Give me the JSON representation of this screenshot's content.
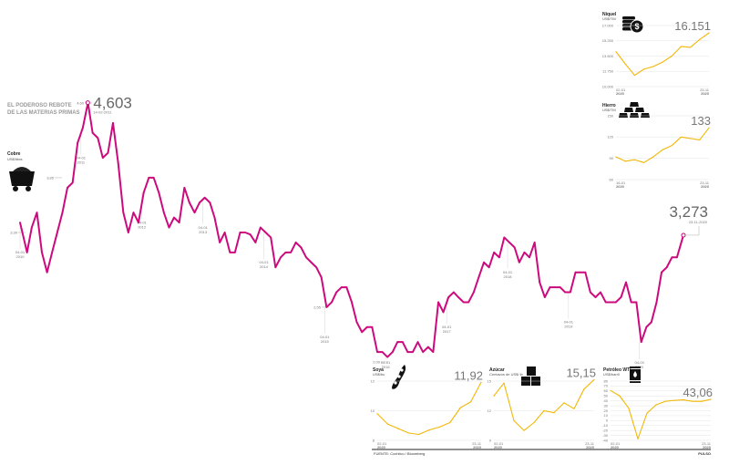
{
  "title_line1": "EL PODEROSO REBOTE",
  "title_line2": "DE LAS MATERIAS PRIMAS",
  "footer_source": "FUENTE: Cochilco / Bloomberg",
  "footer_brand": "PULSO",
  "colors": {
    "copper": "#cc0a7d",
    "others": "#f2b705",
    "grid": "#dddddd",
    "text": "#333333"
  },
  "chart_data": [
    {
      "type": "line",
      "title": "Cobre",
      "ylabel": "US$/libra",
      "icon": "mine-cart-icon",
      "yticks": [
        4.6,
        3.85,
        3.3,
        2.55,
        2.0
      ],
      "ytick_labels": [
        "4,60",
        "3,85",
        "3,30",
        "2,55",
        "2,00"
      ],
      "ylim": [
        2.0,
        4.6
      ],
      "xlim": [
        "2010-01-04",
        "2020-11-23"
      ],
      "xtick_labels": [
        {
          "date": "2010-01-04",
          "label": "04-01",
          "year": "2010"
        },
        {
          "date": "2011-01-04",
          "label": "04-01",
          "year": "2011"
        },
        {
          "date": "2012-01-04",
          "label": "04-01",
          "year": "2012"
        },
        {
          "date": "2013-01-04",
          "label": "04-01",
          "year": "2013"
        },
        {
          "date": "2014-01-04",
          "label": "04-01",
          "year": "2014"
        },
        {
          "date": "2015-01-04",
          "label": "04-01",
          "year": "2015"
        },
        {
          "date": "2016-01-04",
          "label": "04-01",
          "year": "2016"
        },
        {
          "date": "2017-01-04",
          "label": "04-01",
          "year": "2017"
        },
        {
          "date": "2018-01-04",
          "label": "04-01",
          "year": "2018"
        },
        {
          "date": "2019-01-04",
          "label": "04-01",
          "year": "2019"
        },
        {
          "date": "2020-03-04",
          "label": "04-03",
          "year": "2020"
        }
      ],
      "annotations": [
        {
          "date": "2011-02-14",
          "value": 4.603,
          "label": "4,603",
          "sublabel": "14-02-2011"
        },
        {
          "date": "2020-11-23",
          "value": 3.273,
          "label": "3,273",
          "sublabel": "23-11-2020"
        }
      ],
      "x": [
        "2010-01",
        "2010-02",
        "2010-03",
        "2010-04",
        "2010-05",
        "2010-06",
        "2010-07",
        "2010-08",
        "2010-09",
        "2010-10",
        "2010-11",
        "2010-12",
        "2011-01",
        "2011-02",
        "2011-03",
        "2011-04",
        "2011-05",
        "2011-06",
        "2011-07",
        "2011-08",
        "2011-09",
        "2011-10",
        "2011-11",
        "2011-12",
        "2012-01",
        "2012-02",
        "2012-03",
        "2012-04",
        "2012-05",
        "2012-06",
        "2012-07",
        "2012-08",
        "2012-09",
        "2012-10",
        "2012-11",
        "2012-12",
        "2013-01",
        "2013-02",
        "2013-03",
        "2013-04",
        "2013-05",
        "2013-06",
        "2013-07",
        "2013-08",
        "2013-09",
        "2013-10",
        "2013-11",
        "2013-12",
        "2014-01",
        "2014-02",
        "2014-03",
        "2014-04",
        "2014-05",
        "2014-06",
        "2014-07",
        "2014-08",
        "2014-09",
        "2014-10",
        "2014-11",
        "2014-12",
        "2015-01",
        "2015-02",
        "2015-03",
        "2015-04",
        "2015-05",
        "2015-06",
        "2015-07",
        "2015-08",
        "2015-09",
        "2015-10",
        "2015-11",
        "2015-12",
        "2016-01",
        "2016-02",
        "2016-03",
        "2016-04",
        "2016-05",
        "2016-06",
        "2016-07",
        "2016-08",
        "2016-09",
        "2016-10",
        "2016-11",
        "2016-12",
        "2017-01",
        "2017-02",
        "2017-03",
        "2017-04",
        "2017-05",
        "2017-06",
        "2017-07",
        "2017-08",
        "2017-09",
        "2017-10",
        "2017-11",
        "2017-12",
        "2018-01",
        "2018-02",
        "2018-03",
        "2018-04",
        "2018-05",
        "2018-06",
        "2018-07",
        "2018-08",
        "2018-09",
        "2018-10",
        "2018-11",
        "2018-12",
        "2019-01",
        "2019-02",
        "2019-03",
        "2019-04",
        "2019-05",
        "2019-06",
        "2019-07",
        "2019-08",
        "2019-09",
        "2019-10",
        "2019-11",
        "2019-12",
        "2020-01",
        "2020-02",
        "2020-03",
        "2020-04",
        "2020-05",
        "2020-06",
        "2020-07",
        "2020-08",
        "2020-09",
        "2020-10",
        "2020-11"
      ],
      "values": [
        3.4,
        3.1,
        3.35,
        3.5,
        3.1,
        2.9,
        3.1,
        3.3,
        3.5,
        3.75,
        3.8,
        4.2,
        4.35,
        4.603,
        4.3,
        4.25,
        4.05,
        4.1,
        4.4,
        4.0,
        3.5,
        3.3,
        3.5,
        3.4,
        3.7,
        3.85,
        3.85,
        3.7,
        3.5,
        3.35,
        3.45,
        3.4,
        3.75,
        3.6,
        3.5,
        3.6,
        3.65,
        3.6,
        3.45,
        3.2,
        3.3,
        3.1,
        3.1,
        3.3,
        3.3,
        3.28,
        3.2,
        3.35,
        3.3,
        3.25,
        2.95,
        3.05,
        3.1,
        3.1,
        3.2,
        3.15,
        3.05,
        3.0,
        2.95,
        2.85,
        2.55,
        2.6,
        2.7,
        2.75,
        2.75,
        2.6,
        2.4,
        2.3,
        2.35,
        2.35,
        2.1,
        2.1,
        2.05,
        2.1,
        2.2,
        2.2,
        2.1,
        2.1,
        2.2,
        2.1,
        2.15,
        2.1,
        2.6,
        2.5,
        2.65,
        2.7,
        2.65,
        2.6,
        2.6,
        2.7,
        2.85,
        3.0,
        2.95,
        3.1,
        3.05,
        3.25,
        3.2,
        3.15,
        3.0,
        3.1,
        3.05,
        3.2,
        2.8,
        2.65,
        2.75,
        2.75,
        2.75,
        2.7,
        2.7,
        2.9,
        2.9,
        2.9,
        2.7,
        2.65,
        2.7,
        2.6,
        2.6,
        2.6,
        2.65,
        2.8,
        2.6,
        2.6,
        2.2,
        2.35,
        2.4,
        2.6,
        2.9,
        2.95,
        3.05,
        3.05,
        3.273
      ]
    },
    {
      "type": "line",
      "title": "Níquel",
      "ylabel": "US$/TM",
      "icon": "coins-dollar-icon",
      "yticks": [
        17000,
        15250,
        13500,
        11750,
        10000
      ],
      "ytick_labels": [
        "17.000",
        "15.250",
        "13.500",
        "11.750",
        "10.000"
      ],
      "ylim": [
        10000,
        17000
      ],
      "xtick_labels": [
        {
          "label": "02-01",
          "year": "2020"
        },
        {
          "label": "23-11",
          "year": "2020"
        }
      ],
      "last_label": "16.151",
      "x": [
        "2020-01",
        "2020-02",
        "2020-03",
        "2020-04",
        "2020-05",
        "2020-06",
        "2020-07",
        "2020-08",
        "2020-09",
        "2020-10",
        "2020-11"
      ],
      "values": [
        14000,
        12600,
        11300,
        12000,
        12300,
        12800,
        13500,
        14600,
        14500,
        15400,
        16151
      ]
    },
    {
      "type": "line",
      "title": "Hierro",
      "ylabel": "US$/TM",
      "icon": "ingots-icon",
      "yticks": [
        150,
        120,
        90,
        60
      ],
      "ytick_labels": [
        "150",
        "120",
        "90",
        "60"
      ],
      "ylim": [
        60,
        150
      ],
      "xtick_labels": [
        {
          "label": "16-01",
          "year": "2020"
        },
        {
          "label": "23-11",
          "year": "2020"
        }
      ],
      "last_label": "133",
      "x": [
        "2020-01",
        "2020-02",
        "2020-03",
        "2020-04",
        "2020-05",
        "2020-06",
        "2020-07",
        "2020-08",
        "2020-09",
        "2020-10",
        "2020-11"
      ],
      "values": [
        92,
        86,
        88,
        84,
        92,
        102,
        108,
        120,
        118,
        116,
        133
      ]
    },
    {
      "type": "line",
      "title": "Soya",
      "ylabel": "US$/bu",
      "icon": "soybean-pod-icon",
      "yticks": [
        12,
        10,
        8
      ],
      "ytick_labels": [
        "12",
        "10",
        "8"
      ],
      "ylim": [
        8,
        12
      ],
      "xtick_labels": [
        {
          "label": "02-01",
          "year": "2020"
        },
        {
          "label": "23-11",
          "year": "2020"
        }
      ],
      "last_label": "11,92",
      "x": [
        "2020-01",
        "2020-02",
        "2020-03",
        "2020-04",
        "2020-05",
        "2020-06",
        "2020-07",
        "2020-08",
        "2020-09",
        "2020-10",
        "2020-11"
      ],
      "values": [
        9.8,
        9.1,
        8.8,
        8.5,
        8.4,
        8.7,
        8.9,
        9.2,
        10.2,
        10.6,
        11.92
      ]
    },
    {
      "type": "line",
      "title": "Azúcar",
      "ylabel": "Centavos de US$/ lb",
      "icon": "sugar-cubes-icon",
      "yticks": [
        15,
        12,
        9
      ],
      "ytick_labels": [
        "15",
        "12",
        "9"
      ],
      "ylim": [
        9,
        15
      ],
      "xtick_labels": [
        {
          "label": "02-01",
          "year": "2020"
        },
        {
          "label": "23-11",
          "year": "2020"
        }
      ],
      "last_label": "15,15",
      "x": [
        "2020-01",
        "2020-02",
        "2020-03",
        "2020-04",
        "2020-05",
        "2020-06",
        "2020-07",
        "2020-08",
        "2020-09",
        "2020-10",
        "2020-11"
      ],
      "values": [
        13.5,
        14.8,
        11.0,
        10.0,
        10.8,
        12.0,
        11.8,
        12.8,
        12.2,
        14.2,
        15.15
      ]
    },
    {
      "type": "line",
      "title": "Petróleo WTI",
      "ylabel": "US$/barril",
      "icon": "oil-barrel-icon",
      "yticks": [
        80,
        70,
        60,
        50,
        40,
        30,
        20,
        10,
        0,
        -10,
        -20,
        -30,
        -40
      ],
      "ytick_labels": [
        "80",
        "70",
        "60",
        "50",
        "40",
        "30",
        "20",
        "10",
        "0",
        "-10",
        "-20",
        "-30",
        "-40"
      ],
      "ylim": [
        -40,
        80
      ],
      "xtick_labels": [
        {
          "label": "02-01",
          "year": "2020"
        },
        {
          "label": "23-11",
          "year": "2020"
        }
      ],
      "last_label": "43,06",
      "x": [
        "2020-01",
        "2020-02",
        "2020-03",
        "2020-04a",
        "2020-04b",
        "2020-05",
        "2020-06",
        "2020-07",
        "2020-08",
        "2020-09",
        "2020-10",
        "2020-11"
      ],
      "values": [
        61,
        50,
        25,
        -37,
        15,
        32,
        39,
        41,
        42,
        39,
        39,
        43.06
      ]
    }
  ]
}
